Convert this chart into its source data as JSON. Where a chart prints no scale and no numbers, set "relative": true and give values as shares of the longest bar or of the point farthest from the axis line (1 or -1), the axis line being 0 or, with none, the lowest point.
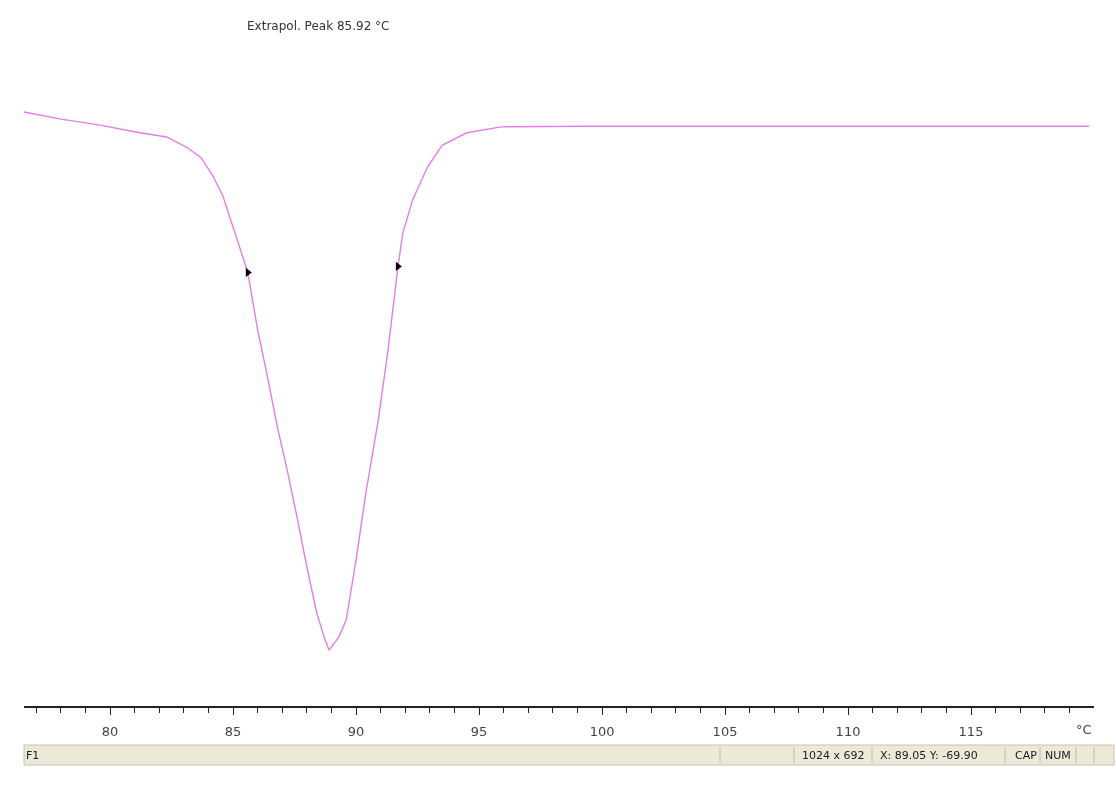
{
  "chart_data": {
    "type": "line",
    "relative": true,
    "xlabel": "°C",
    "xlim": [
      76.5,
      120
    ],
    "xticks": [
      {
        "value": 77,
        "label": null
      },
      {
        "value": 78,
        "label": null
      },
      {
        "value": 79,
        "label": null
      },
      80,
      {
        "value": 81,
        "label": null
      },
      {
        "value": 82,
        "label": null
      },
      {
        "value": 83,
        "label": null
      },
      {
        "value": 84,
        "label": null
      },
      85,
      {
        "value": 86,
        "label": null
      },
      {
        "value": 87,
        "label": null
      },
      {
        "value": 88,
        "label": null
      },
      {
        "value": 89,
        "label": null
      },
      90,
      {
        "value": 91,
        "label": null
      },
      {
        "value": 92,
        "label": null
      },
      {
        "value": 93,
        "label": null
      },
      {
        "value": 94,
        "label": null
      },
      95,
      {
        "value": 96,
        "label": null
      },
      {
        "value": 97,
        "label": null
      },
      {
        "value": 98,
        "label": null
      },
      {
        "value": 99,
        "label": null
      },
      100,
      {
        "value": 101,
        "label": null
      },
      {
        "value": 102,
        "label": null
      },
      {
        "value": 103,
        "label": null
      },
      {
        "value": 104,
        "label": null
      },
      105,
      {
        "value": 106,
        "label": null
      },
      {
        "value": 107,
        "label": null
      },
      {
        "value": 108,
        "label": null
      },
      {
        "value": 109,
        "label": null
      },
      110,
      {
        "value": 111,
        "label": null
      },
      {
        "value": 112,
        "label": null
      },
      {
        "value": 113,
        "label": null
      },
      {
        "value": 114,
        "label": null
      },
      115,
      {
        "value": 116,
        "label": null
      },
      {
        "value": 117,
        "label": null
      },
      {
        "value": 118,
        "label": null
      },
      {
        "value": 119,
        "label": null
      }
    ],
    "tick_labels": "x",
    "marker": "none",
    "line_style": "solid",
    "series": [
      {
        "color": "#e27ee9",
        "x": [
          76.5,
          78.0,
          79.6,
          81.1,
          82.3,
          83.1,
          83.7,
          84.2,
          84.6,
          85.0,
          85.3,
          85.6,
          86.0,
          86.4,
          86.8,
          87.2,
          87.6,
          88.0,
          88.4,
          88.7,
          88.9,
          89.3,
          89.6,
          90.0,
          90.4,
          90.9,
          91.3,
          91.7,
          91.9,
          92.3,
          92.9,
          93.5,
          94.5,
          95.9,
          99.3,
          119.8
        ],
        "values": [
          1.0,
          0.988,
          0.978,
          0.966,
          0.958,
          0.941,
          0.923,
          0.891,
          0.857,
          0.806,
          0.768,
          0.729,
          0.633,
          0.554,
          0.47,
          0.397,
          0.318,
          0.234,
          0.157,
          0.116,
          0.094,
          0.116,
          0.145,
          0.246,
          0.359,
          0.481,
          0.599,
          0.739,
          0.796,
          0.852,
          0.907,
          0.944,
          0.965,
          0.975,
          0.976,
          0.976
        ]
      },
      {
        "type": "scatter",
        "color": "#000000",
        "marker": "triangle",
        "x": [
          85.6,
          91.7
        ],
        "values": [
          0.73,
          0.74
        ]
      }
    ],
    "annotations": [
      "Extrapol. Peak 85.92 °C",
      "F1",
      "1024 x 692",
      "X: 89.05 Y: -69.90",
      "CAP",
      "NUM"
    ]
  }
}
